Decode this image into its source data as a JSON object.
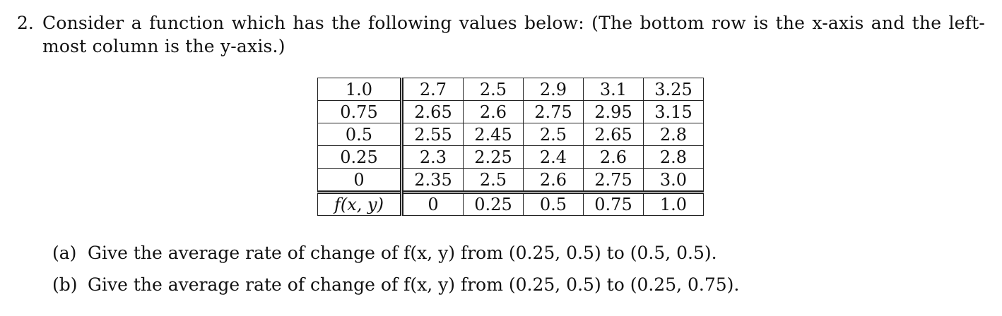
{
  "problem": {
    "number": "2.",
    "intro": "Consider a function which has the following values below: (The bottom row is the x-axis and the left-most column is the y-axis.)"
  },
  "table": {
    "rows": [
      {
        "y": "1.0",
        "values": [
          "2.7",
          "2.5",
          "2.9",
          "3.1",
          "3.25"
        ]
      },
      {
        "y": "0.75",
        "values": [
          "2.65",
          "2.6",
          "2.75",
          "2.95",
          "3.15"
        ]
      },
      {
        "y": "0.5",
        "values": [
          "2.55",
          "2.45",
          "2.5",
          "2.65",
          "2.8"
        ]
      },
      {
        "y": "0.25",
        "values": [
          "2.3",
          "2.25",
          "2.4",
          "2.6",
          "2.8"
        ]
      },
      {
        "y": "0",
        "values": [
          "2.35",
          "2.5",
          "2.6",
          "2.75",
          "3.0"
        ]
      }
    ],
    "corner_label": "f(x, y)",
    "x_values": [
      "0",
      "0.25",
      "0.5",
      "0.75",
      "1.0"
    ]
  },
  "parts": [
    {
      "label": "(a)",
      "text": "Give the average rate of change of f(x, y) from (0.25, 0.5) to (0.5, 0.5)."
    },
    {
      "label": "(b)",
      "text": "Give the average rate of change of f(x, y) from (0.25, 0.5) to (0.25, 0.75)."
    }
  ]
}
